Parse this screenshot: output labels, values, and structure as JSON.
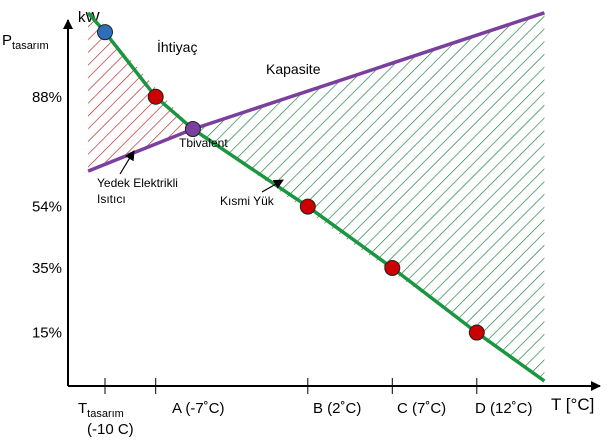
{
  "chart_data": {
    "type": "line",
    "y_unit_label": "kW",
    "x_axis_label": "T [°C]",
    "y_top_label": {
      "main": "P",
      "sub": "tasarım"
    },
    "y_ticks": [
      {
        "label": "88%",
        "value": 88
      },
      {
        "label": "54%",
        "value": 54
      },
      {
        "label": "35%",
        "value": 35
      },
      {
        "label": "15%",
        "value": 15
      }
    ],
    "x_ticks": [
      {
        "main": "T",
        "sub": "tasarım",
        "line2": "(-10 C)",
        "value": -10
      },
      {
        "label": "A (-7˚C)",
        "value": -7
      },
      {
        "label": "B (2˚C)",
        "value": 2
      },
      {
        "label": "C (7˚C)",
        "value": 7
      },
      {
        "label": "D (12˚C)",
        "value": 12
      }
    ],
    "series": [
      {
        "name": "İhtiyaç",
        "color": "#1a9641",
        "points": [
          [
            -11,
            114
          ],
          [
            -10,
            108
          ],
          [
            -7,
            88
          ],
          [
            -4.8,
            78
          ],
          [
            2,
            54
          ],
          [
            7,
            35
          ],
          [
            12,
            15
          ],
          [
            16,
            0
          ]
        ]
      },
      {
        "name": "Kapasite",
        "color": "#7b3fa0",
        "points": [
          [
            -11,
            65
          ],
          [
            -4.8,
            78
          ],
          [
            16,
            114
          ]
        ]
      }
    ],
    "markers": [
      {
        "x": -10,
        "y": 108,
        "color": "#2e6fba"
      },
      {
        "x": -7,
        "y": 88,
        "color": "#cc0000"
      },
      {
        "x": -4.8,
        "y": 78,
        "color": "#7b3fa0"
      },
      {
        "x": 2,
        "y": 54,
        "color": "#cc0000"
      },
      {
        "x": 7,
        "y": 35,
        "color": "#cc0000"
      },
      {
        "x": 12,
        "y": 15,
        "color": "#cc0000"
      }
    ],
    "regions": [
      {
        "name": "backup",
        "color": "#b22222"
      },
      {
        "name": "partial",
        "color": "#1a7a3a"
      }
    ],
    "annotations": {
      "demand": "İhtiyaç",
      "capacity": "Kapasite",
      "bivalent": "Tbivalent",
      "backup_line1": "Yedek Elektrikli",
      "backup_line2": "Isıtıcı",
      "partial_load": "Kısmi Yük"
    }
  }
}
